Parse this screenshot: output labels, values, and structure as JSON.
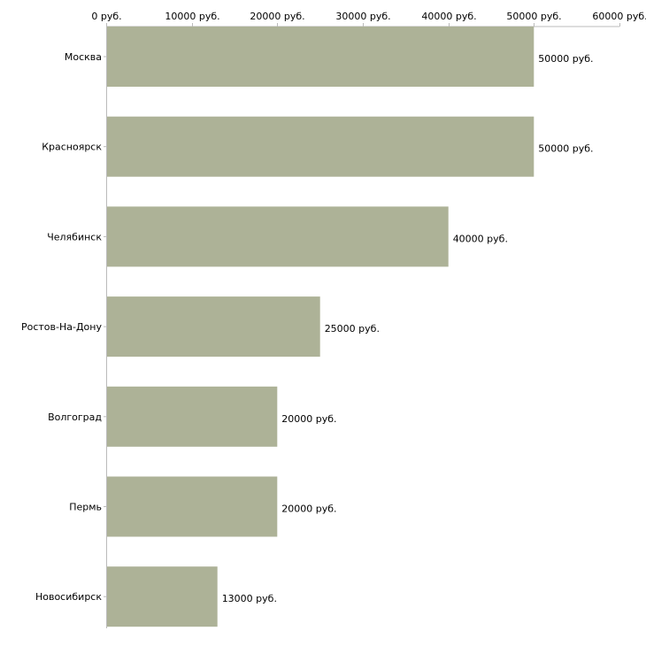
{
  "chart_data": {
    "type": "bar",
    "orientation": "horizontal",
    "title": "",
    "xlabel": "",
    "ylabel": "",
    "categories": [
      "Москва",
      "Красноярск",
      "Челябинск",
      "Ростов-На-Дону",
      "Волгоград",
      "Пермь",
      "Новосибирск"
    ],
    "values": [
      50000,
      50000,
      40000,
      25000,
      20000,
      20000,
      13000
    ],
    "data_labels": [
      "50000 руб.",
      "50000 руб.",
      "40000 руб.",
      "25000 руб.",
      "20000 руб.",
      "20000 руб.",
      "13000 руб."
    ],
    "xlim": [
      0,
      60000
    ],
    "x_ticks": [
      0,
      10000,
      20000,
      30000,
      40000,
      50000,
      60000
    ],
    "x_tick_labels": [
      "0 руб.",
      "10000 руб.",
      "20000 руб.",
      "30000 руб.",
      "40000 руб.",
      "50000 руб.",
      "60000 руб."
    ],
    "x_axis_position": "top",
    "grid": false,
    "legend": "none",
    "bar_color": "#adb297",
    "axis_color": "#bbbbbb"
  }
}
